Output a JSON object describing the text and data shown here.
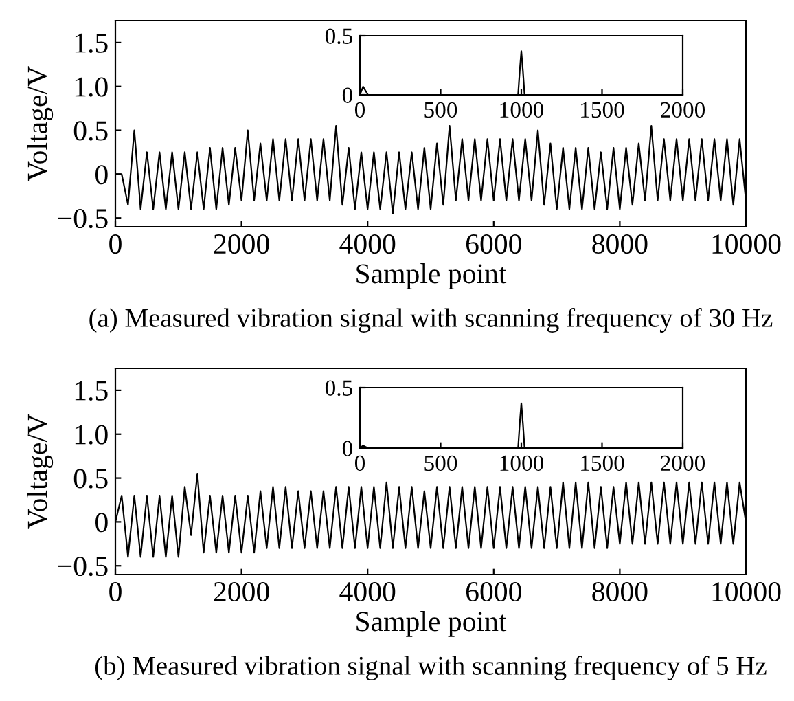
{
  "chart_data": [
    {
      "type": "line",
      "xlabel": "Sample point",
      "ylabel": "Voltage/V",
      "annotations": [
        "(a) Measured vibration signal with scanning frequency of 30 Hz"
      ],
      "x": [
        0,
        100,
        200,
        300,
        400,
        500,
        600,
        700,
        800,
        900,
        1000,
        1100,
        1200,
        1300,
        1400,
        1500,
        1600,
        1700,
        1800,
        1900,
        2000,
        2100,
        2200,
        2300,
        2400,
        2500,
        2600,
        2700,
        2800,
        2900,
        3000,
        3100,
        3200,
        3300,
        3400,
        3500,
        3600,
        3700,
        3800,
        3900,
        4000,
        4100,
        4200,
        4300,
        4400,
        4500,
        4600,
        4700,
        4800,
        4900,
        5000,
        5100,
        5200,
        5300,
        5400,
        5500,
        5600,
        5700,
        5800,
        5900,
        6000,
        6100,
        6200,
        6300,
        6400,
        6500,
        6600,
        6700,
        6800,
        6900,
        7000,
        7100,
        7200,
        7300,
        7400,
        7500,
        7600,
        7700,
        7800,
        7900,
        8000,
        8100,
        8200,
        8300,
        8400,
        8500,
        8600,
        8700,
        8800,
        8900,
        9000,
        9100,
        9200,
        9300,
        9400,
        9500,
        9600,
        9700,
        9800,
        9900,
        10000
      ],
      "series": [
        {
          "color": "#000000",
          "values": [
            0,
            0,
            -0.35,
            0.5,
            -0.4,
            0.25,
            -0.4,
            0.25,
            -0.4,
            0.25,
            -0.4,
            0.25,
            -0.4,
            0.25,
            -0.4,
            0.3,
            -0.4,
            0.3,
            -0.35,
            0.3,
            -0.3,
            0.5,
            -0.3,
            0.35,
            -0.3,
            0.4,
            -0.3,
            0.4,
            -0.3,
            0.4,
            -0.3,
            0.4,
            -0.3,
            0.4,
            -0.3,
            0.55,
            -0.35,
            0.3,
            -0.4,
            0.25,
            -0.4,
            0.25,
            -0.4,
            0.25,
            -0.45,
            0.25,
            -0.4,
            0.25,
            -0.4,
            0.3,
            -0.4,
            0.35,
            -0.35,
            0.55,
            -0.3,
            0.4,
            -0.3,
            0.4,
            -0.3,
            0.4,
            -0.3,
            0.4,
            -0.3,
            0.4,
            -0.3,
            0.4,
            -0.3,
            0.5,
            -0.35,
            0.35,
            -0.4,
            0.3,
            -0.4,
            0.3,
            -0.4,
            0.3,
            -0.4,
            0.25,
            -0.4,
            0.3,
            -0.4,
            0.3,
            -0.35,
            0.35,
            -0.3,
            0.55,
            -0.3,
            0.4,
            -0.3,
            0.4,
            -0.3,
            0.4,
            -0.3,
            0.4,
            -0.3,
            0.4,
            -0.3,
            0.4,
            -0.35,
            0.4,
            -0.3
          ]
        }
      ],
      "xlim": [
        0,
        10000
      ],
      "xticks": [
        0,
        2000,
        4000,
        6000,
        8000,
        10000
      ],
      "ylim": [
        -0.6,
        1.75
      ],
      "yticks": [
        -0.5,
        0,
        0.5,
        {
          "value": 1,
          "label": "1.0"
        },
        1.5
      ]
    },
    {
      "type": "line",
      "x": [
        0,
        20,
        50,
        500,
        980,
        990,
        1000,
        1010,
        1020,
        1500
      ],
      "series": [
        {
          "color": "#000000",
          "values": [
            0,
            0.07,
            0,
            0,
            0,
            0.2,
            0.37,
            0.2,
            0,
            0
          ]
        }
      ],
      "xlim": [
        0,
        2000
      ],
      "xticks": [
        0,
        500,
        1000,
        1500,
        2000
      ],
      "ylim": [
        0,
        0.5
      ],
      "yticks": [
        0,
        0.5
      ]
    },
    {
      "type": "line",
      "xlabel": "Sample point",
      "ylabel": "Voltage/V",
      "annotations": [
        "(b) Measured vibration signal with scanning frequency of 5 Hz"
      ],
      "x": [
        0,
        100,
        200,
        300,
        400,
        500,
        600,
        700,
        800,
        900,
        1000,
        1100,
        1200,
        1300,
        1400,
        1500,
        1600,
        1700,
        1800,
        1900,
        2000,
        2100,
        2200,
        2300,
        2400,
        2500,
        2600,
        2700,
        2800,
        2900,
        3000,
        3100,
        3200,
        3300,
        3400,
        3500,
        3600,
        3700,
        3800,
        3900,
        4000,
        4100,
        4200,
        4300,
        4400,
        4500,
        4600,
        4700,
        4800,
        4900,
        5000,
        5100,
        5200,
        5300,
        5400,
        5500,
        5600,
        5700,
        5800,
        5900,
        6000,
        6100,
        6200,
        6300,
        6400,
        6500,
        6600,
        6700,
        6800,
        6900,
        7000,
        7100,
        7200,
        7300,
        7400,
        7500,
        7600,
        7700,
        7800,
        7900,
        8000,
        8100,
        8200,
        8300,
        8400,
        8500,
        8600,
        8700,
        8800,
        8900,
        9000,
        9100,
        9200,
        9300,
        9400,
        9500,
        9600,
        9700,
        9800,
        9900,
        10000
      ],
      "series": [
        {
          "color": "#000000",
          "values": [
            0,
            0.3,
            -0.4,
            0.3,
            -0.4,
            0.3,
            -0.4,
            0.3,
            -0.4,
            0.3,
            -0.4,
            0.4,
            -0.15,
            0.55,
            -0.35,
            0.3,
            -0.35,
            0.3,
            -0.35,
            0.3,
            -0.35,
            0.3,
            -0.35,
            0.35,
            -0.3,
            0.4,
            -0.3,
            0.4,
            -0.3,
            0.35,
            -0.3,
            0.35,
            -0.3,
            0.35,
            -0.3,
            0.4,
            -0.3,
            0.4,
            -0.3,
            0.4,
            -0.3,
            0.4,
            -0.3,
            0.45,
            -0.3,
            0.4,
            -0.3,
            0.4,
            -0.3,
            0.35,
            -0.3,
            0.4,
            -0.3,
            0.4,
            -0.3,
            0.4,
            -0.3,
            0.4,
            -0.3,
            0.4,
            -0.3,
            0.4,
            -0.3,
            0.4,
            -0.3,
            0.4,
            -0.3,
            0.4,
            -0.3,
            0.4,
            -0.3,
            0.45,
            -0.3,
            0.45,
            -0.3,
            0.45,
            -0.3,
            0.4,
            -0.3,
            0.4,
            -0.25,
            0.45,
            -0.25,
            0.45,
            -0.25,
            0.45,
            -0.25,
            0.45,
            -0.25,
            0.45,
            -0.25,
            0.45,
            -0.25,
            0.45,
            -0.25,
            0.45,
            -0.25,
            0.45,
            -0.25,
            0.45,
            0
          ]
        }
      ],
      "xlim": [
        0,
        10000
      ],
      "xticks": [
        0,
        2000,
        4000,
        6000,
        8000,
        10000
      ],
      "ylim": [
        -0.6,
        1.75
      ],
      "yticks": [
        -0.5,
        0,
        0.5,
        {
          "value": 1,
          "label": "1.0"
        },
        1.5
      ]
    },
    {
      "type": "line",
      "x": [
        0,
        20,
        50,
        980,
        990,
        1000,
        1010,
        1020,
        1850
      ],
      "series": [
        {
          "color": "#000000",
          "values": [
            0,
            0.02,
            0,
            0,
            0.2,
            0.37,
            0.2,
            0,
            0
          ]
        }
      ],
      "xlim": [
        0,
        2000
      ],
      "xticks": [
        0,
        500,
        1000,
        1500,
        2000
      ],
      "ylim": [
        0,
        0.5
      ],
      "yticks": [
        0,
        0.5
      ]
    }
  ]
}
